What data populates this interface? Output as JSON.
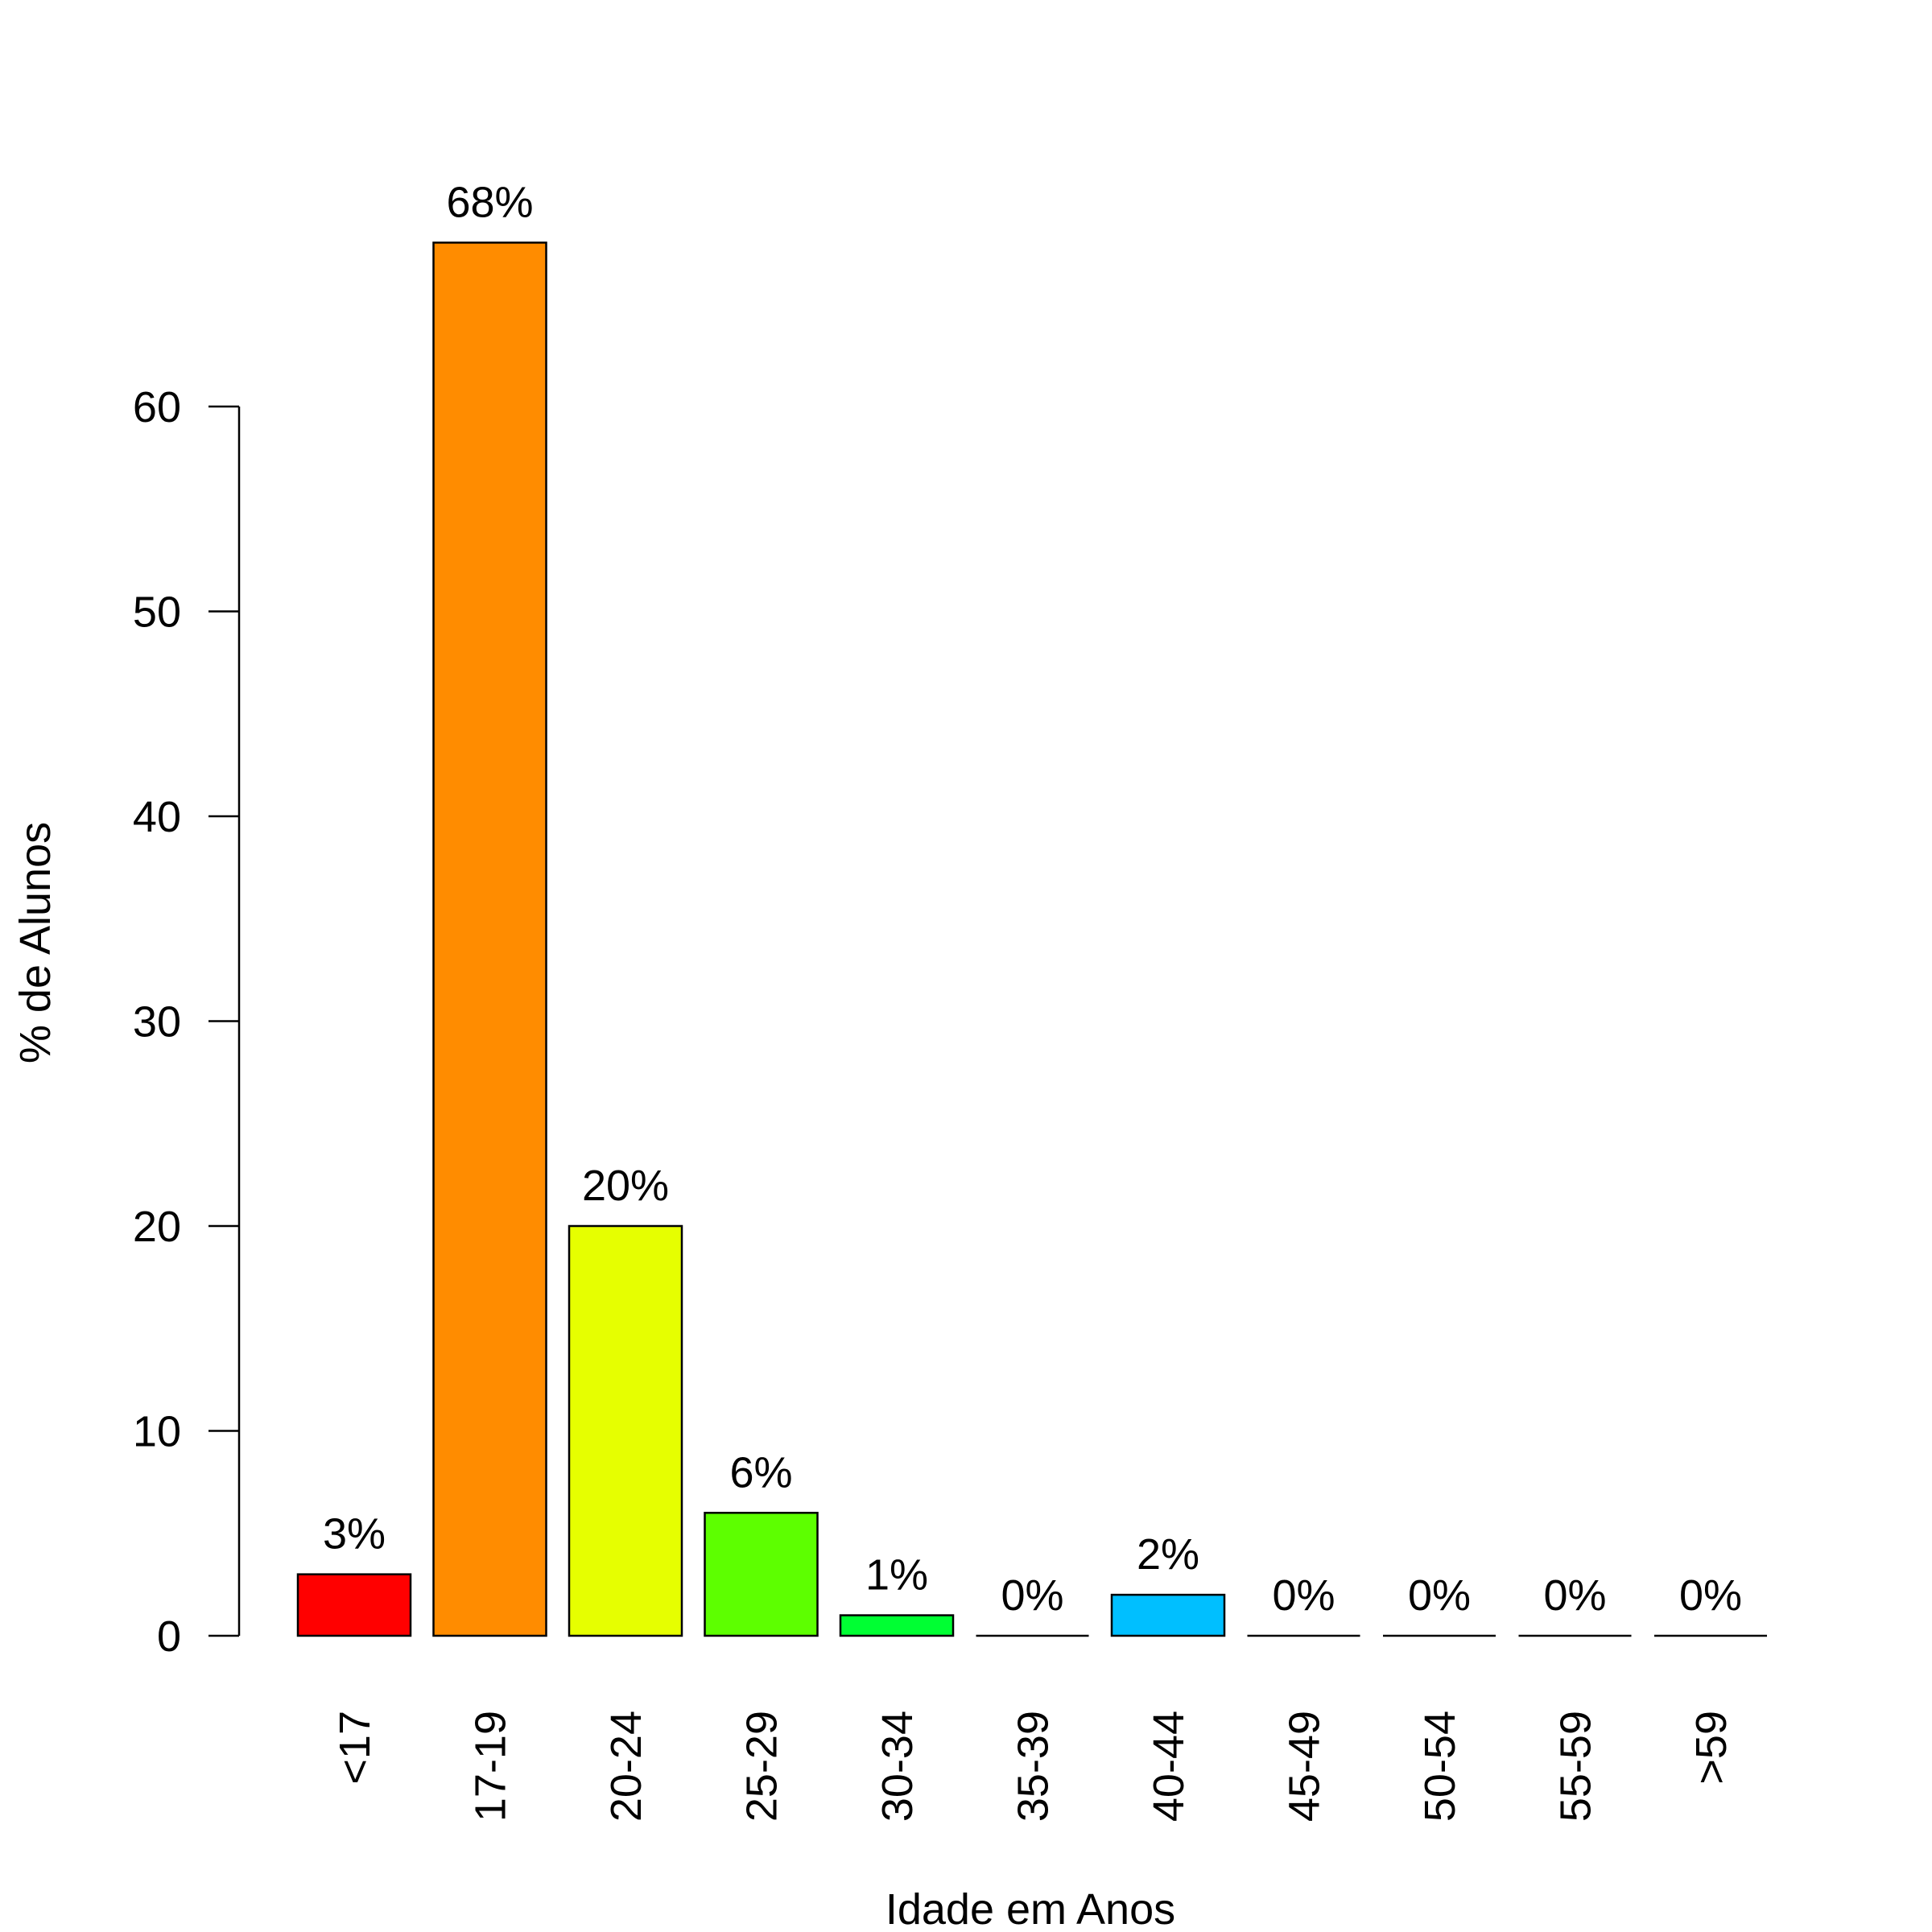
{
  "chart_data": {
    "type": "bar",
    "categories": [
      "<17",
      "17-19",
      "20-24",
      "25-29",
      "30-34",
      "35-39",
      "40-44",
      "45-49",
      "50-54",
      "55-59",
      ">59"
    ],
    "values": [
      3,
      68,
      20,
      6,
      1,
      0,
      2,
      0,
      0,
      0,
      0
    ],
    "data_labels": [
      "3%",
      "68%",
      "20%",
      "6%",
      "1%",
      "0%",
      "2%",
      "0%",
      "0%",
      "0%",
      "0%"
    ],
    "colors": [
      "#ff0000",
      "#ff8c00",
      "#e6ff00",
      "#5dff00",
      "#00ff33",
      "#00ff9f",
      "#00bfff",
      "#0055ff",
      "#1a00ff",
      "#8000ff",
      "#ea00ff"
    ],
    "title": "",
    "xlabel": "Idade em Anos",
    "ylabel": "% de Alunos",
    "yticks": [
      0,
      10,
      20,
      30,
      40,
      50,
      60
    ],
    "ylim": [
      0,
      68
    ],
    "grid": false,
    "legend": "none"
  }
}
